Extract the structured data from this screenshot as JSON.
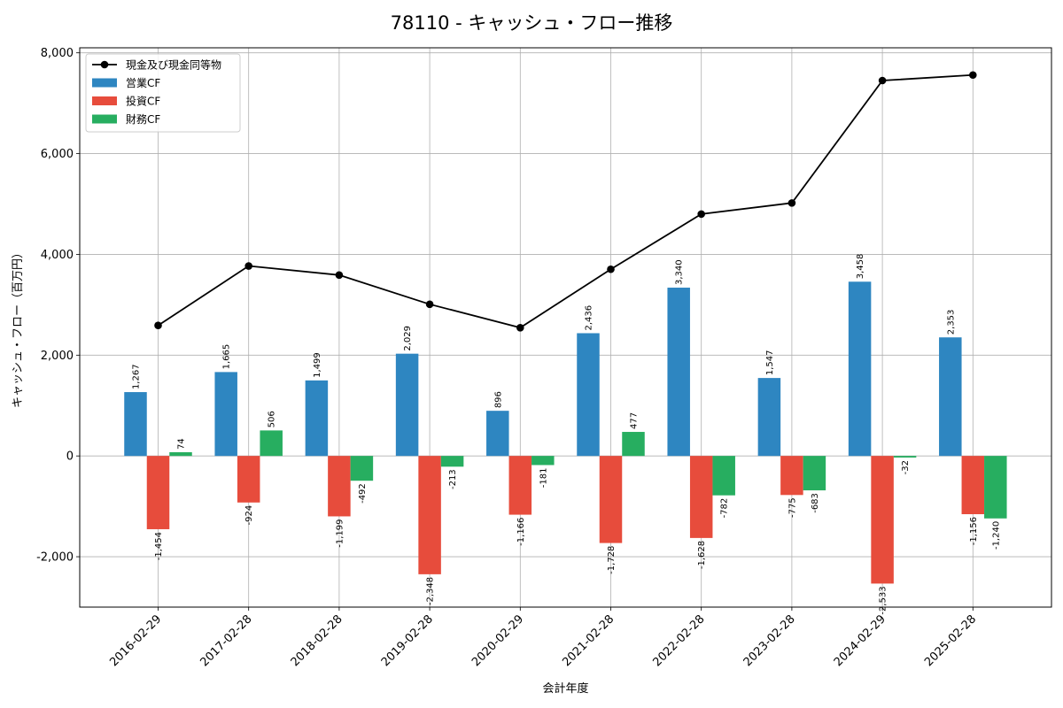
{
  "chart_data": {
    "type": "bar",
    "title": "78110 - キャッシュ・フロー推移",
    "xlabel": "会計年度",
    "ylabel": "キャッシュ・フロー（百万円）",
    "categories": [
      "2016-02-29",
      "2017-02-28",
      "2018-02-28",
      "2019-02-28",
      "2020-02-29",
      "2021-02-28",
      "2022-02-28",
      "2023-02-28",
      "2024-02-29",
      "2025-02-28"
    ],
    "ylim": [
      -3000,
      8100
    ],
    "yticks": [
      -2000,
      0,
      2000,
      4000,
      6000,
      8000
    ],
    "ytick_labels": [
      "-2,000",
      "0",
      "2,000",
      "4,000",
      "6,000",
      "8,000"
    ],
    "grid": true,
    "legend_position": "top-left",
    "series": [
      {
        "name": "営業CF",
        "kind": "bar",
        "color": "#2e86c1",
        "values": [
          1267,
          1665,
          1499,
          2029,
          896,
          2436,
          3340,
          1547,
          3458,
          2353
        ],
        "labels": [
          "1,267",
          "1,665",
          "1,499",
          "2,029",
          "896",
          "2,436",
          "3,340",
          "1,547",
          "3,458",
          "2,353"
        ]
      },
      {
        "name": "投資CF",
        "kind": "bar",
        "color": "#e74c3c",
        "values": [
          -1454,
          -924,
          -1199,
          -2348,
          -1166,
          -1728,
          -1628,
          -775,
          -2533,
          -1156
        ],
        "labels": [
          "-1,454",
          "-924",
          "-1,199",
          "-2,348",
          "-1,166",
          "-1,728",
          "-1,628",
          "-775",
          "-2,533",
          "-1,156"
        ]
      },
      {
        "name": "財務CF",
        "kind": "bar",
        "color": "#27ae60",
        "values": [
          74,
          506,
          -492,
          -213,
          -181,
          477,
          -782,
          -683,
          -32,
          -1240
        ],
        "labels": [
          "74",
          "506",
          "-492",
          "-213",
          "-181",
          "477",
          "-782",
          "-683",
          "-32",
          "-1,240"
        ]
      },
      {
        "name": "現金及び現金同等物",
        "kind": "line",
        "color": "#000000",
        "values": [
          2590,
          3770,
          3590,
          3010,
          2545,
          3705,
          4800,
          5020,
          7450,
          7560
        ]
      }
    ]
  }
}
